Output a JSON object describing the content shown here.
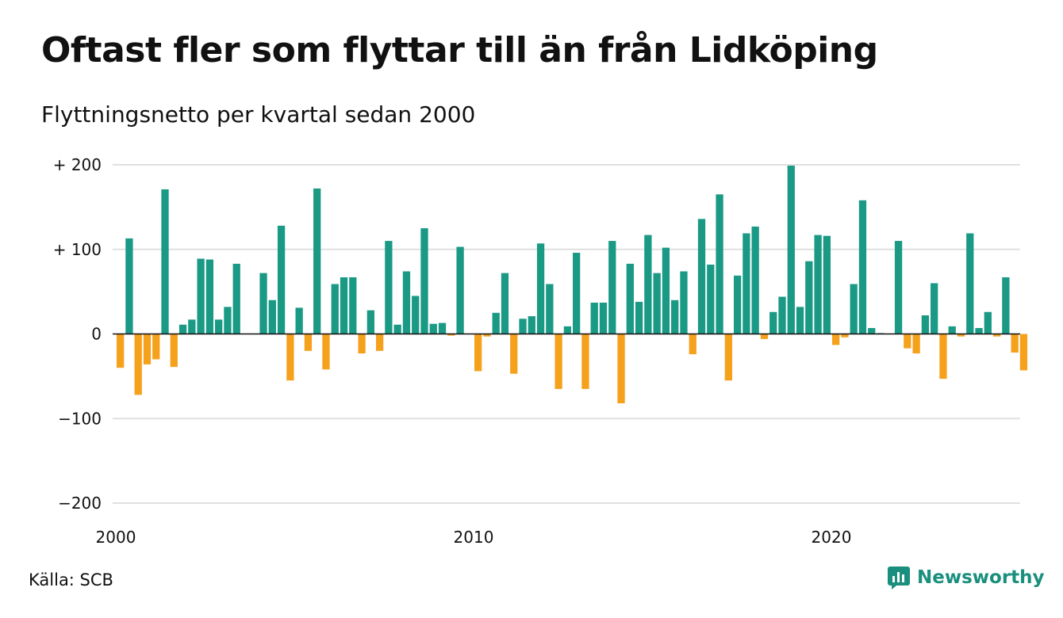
{
  "title": "Oftast fler som flyttar till än från Lidköping",
  "subtitle": "Flyttningsnetto per kvartal sedan 2000",
  "source": "Källa: SCB",
  "brand": "Newsworthy",
  "colors": {
    "positive": "#1a9985",
    "negative": "#f5a11c",
    "grid": "#e0e0e0",
    "brand": "#1a8f7d"
  },
  "chart_data": {
    "type": "bar",
    "title": "Oftast fler som flyttar till än från Lidköping",
    "subtitle": "Flyttningsnetto per kvartal sedan 2000",
    "start_year": 2000,
    "quarters_per_year": 4,
    "ylim": [
      -200,
      200
    ],
    "y_ticks": [
      {
        "value": 200,
        "label": "+ 200"
      },
      {
        "value": 100,
        "label": "+ 100"
      },
      {
        "value": 0,
        "label": "0"
      },
      {
        "value": -100,
        "label": "−100"
      },
      {
        "value": -200,
        "label": "−200"
      }
    ],
    "x_ticks": [
      {
        "value": 2000,
        "label": "2000"
      },
      {
        "value": 2010,
        "label": "2010"
      },
      {
        "value": 2020,
        "label": "2020"
      }
    ],
    "grid": true,
    "values": [
      -40,
      113,
      -72,
      -36,
      -30,
      171,
      -39,
      11,
      17,
      89,
      88,
      17,
      32,
      83,
      0,
      0,
      72,
      40,
      128,
      -55,
      31,
      -20,
      172,
      -42,
      59,
      67,
      67,
      -23,
      28,
      -20,
      110,
      11,
      74,
      45,
      125,
      12,
      13,
      -2,
      103,
      0,
      -44,
      -3,
      25,
      72,
      -47,
      18,
      21,
      107,
      59,
      -65,
      9,
      96,
      -65,
      37,
      37,
      110,
      -82,
      83,
      38,
      117,
      72,
      102,
      40,
      74,
      -24,
      136,
      82,
      165,
      -55,
      69,
      119,
      127,
      -6,
      26,
      44,
      199,
      32,
      86,
      117,
      116,
      -13,
      -4,
      59,
      158,
      7,
      1,
      0,
      110,
      -17,
      -23,
      22,
      60,
      -53,
      9,
      -3,
      119,
      7,
      26,
      -3,
      67,
      -22,
      -43
    ]
  }
}
